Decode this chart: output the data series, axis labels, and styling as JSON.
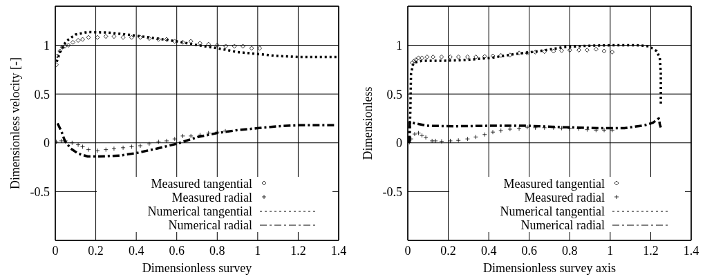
{
  "chart_data": [
    {
      "type": "line",
      "xlabel": "Dimensionless survey",
      "ylabel": "Dimensionless velocity [-]",
      "xlim": [
        0,
        1.4
      ],
      "ylim": [
        -1,
        1.4
      ],
      "xticks": [
        0,
        0.2,
        0.4,
        0.6,
        0.8,
        1,
        1.2,
        1.4
      ],
      "yticks": [
        -0.5,
        0,
        0.5,
        1
      ],
      "grid": true,
      "legend": "bottom",
      "series": [
        {
          "name": "Measured tangential",
          "type": "scatter",
          "marker": "diamond",
          "color": "#000000",
          "x": [
            0.005,
            0.01,
            0.023,
            0.035,
            0.047,
            0.065,
            0.087,
            0.113,
            0.135,
            0.164,
            0.208,
            0.25,
            0.29,
            0.335,
            0.377,
            0.42,
            0.464,
            0.51,
            0.55,
            0.59,
            0.63,
            0.67,
            0.715,
            0.757,
            0.8,
            0.842,
            0.885,
            0.927,
            0.97,
            1.01
          ],
          "values": [
            0.8,
            0.89,
            0.94,
            0.98,
            0.99,
            1.0,
            1.03,
            1.05,
            1.06,
            1.08,
            1.08,
            1.09,
            1.09,
            1.08,
            1.08,
            1.08,
            1.07,
            1.06,
            1.06,
            1.04,
            1.03,
            1.04,
            1.02,
            1.01,
            1.0,
            0.99,
            0.99,
            0.99,
            0.97,
            0.97
          ]
        },
        {
          "name": "Measured radial",
          "type": "scatter",
          "marker": "cross",
          "color": "#000000",
          "x": [
            0.005,
            0.03,
            0.05,
            0.083,
            0.113,
            0.135,
            0.164,
            0.208,
            0.25,
            0.29,
            0.335,
            0.377,
            0.42,
            0.464,
            0.51,
            0.55,
            0.59,
            0.63,
            0.67,
            0.715,
            0.757,
            0.8,
            0.84
          ],
          "values": [
            0.01,
            0.02,
            0.02,
            0.0,
            -0.02,
            -0.04,
            -0.07,
            -0.08,
            -0.07,
            -0.06,
            -0.05,
            -0.04,
            -0.03,
            -0.01,
            0.01,
            0.02,
            0.04,
            0.07,
            0.07,
            0.08,
            0.1,
            0.11,
            0.12
          ]
        },
        {
          "name": "Numerical tangential",
          "type": "line",
          "line_style": "dotted",
          "color": "#000000",
          "x": [
            0.007,
            0.023,
            0.053,
            0.1,
            0.16,
            0.26,
            0.355,
            0.464,
            0.6,
            0.705,
            0.8,
            0.9,
            1.0,
            1.1,
            1.2,
            1.39
          ],
          "values": [
            0.83,
            0.93,
            1.04,
            1.11,
            1.135,
            1.13,
            1.11,
            1.08,
            1.04,
            1.0,
            0.97,
            0.93,
            0.91,
            0.89,
            0.88,
            0.88
          ]
        },
        {
          "name": "Numerical radial",
          "type": "line",
          "line_style": "dashdot",
          "color": "#000000",
          "x": [
            0.011,
            0.03,
            0.047,
            0.077,
            0.113,
            0.16,
            0.22,
            0.32,
            0.4,
            0.5,
            0.6,
            0.705,
            0.8,
            0.9,
            1.0,
            1.1,
            1.2,
            1.39
          ],
          "values": [
            0.2,
            0.12,
            0.02,
            -0.06,
            -0.11,
            -0.14,
            -0.14,
            -0.13,
            -0.105,
            -0.06,
            -0.01,
            0.06,
            0.1,
            0.13,
            0.15,
            0.17,
            0.18,
            0.18
          ]
        }
      ]
    },
    {
      "type": "line",
      "xlabel": "Dimensionless survey axis",
      "ylabel": "Dimensionless",
      "xlim": [
        0,
        1.4
      ],
      "ylim": [
        -1,
        1.4
      ],
      "xticks": [
        0,
        0.2,
        0.4,
        0.6,
        0.8,
        1,
        1.2,
        1.4
      ],
      "yticks": [
        -0.5,
        0,
        0.5,
        1
      ],
      "grid": true,
      "legend": "bottom",
      "series": [
        {
          "name": "Measured tangential",
          "type": "scatter",
          "marker": "diamond",
          "color": "#000000",
          "x": [
            0.022,
            0.032,
            0.04,
            0.053,
            0.07,
            0.095,
            0.125,
            0.167,
            0.21,
            0.25,
            0.295,
            0.336,
            0.38,
            0.42,
            0.46,
            0.505,
            0.55,
            0.59,
            0.63,
            0.675,
            0.72,
            0.76,
            0.8,
            0.845,
            0.886,
            0.93,
            0.97,
            1.01
          ],
          "values": [
            0.82,
            0.84,
            0.85,
            0.87,
            0.87,
            0.88,
            0.88,
            0.88,
            0.88,
            0.88,
            0.88,
            0.88,
            0.885,
            0.89,
            0.895,
            0.9,
            0.92,
            0.92,
            0.93,
            0.935,
            0.94,
            0.945,
            0.95,
            0.95,
            0.95,
            0.96,
            0.94,
            0.93
          ]
        },
        {
          "name": "Measured radial",
          "type": "scatter",
          "marker": "cross",
          "color": "#000000",
          "x": [
            0.008,
            0.016,
            0.034,
            0.053,
            0.07,
            0.089,
            0.12,
            0.137,
            0.167,
            0.21,
            0.25,
            0.295,
            0.336,
            0.38,
            0.42,
            0.46,
            0.505,
            0.55,
            0.59,
            0.63,
            0.675,
            0.72,
            0.76,
            0.8,
            0.845,
            0.886,
            0.93,
            0.97,
            1.01
          ],
          "values": [
            0.005,
            0.04,
            0.09,
            0.1,
            0.075,
            0.055,
            0.02,
            0.02,
            0.015,
            0.02,
            0.025,
            0.04,
            0.06,
            0.085,
            0.11,
            0.125,
            0.14,
            0.145,
            0.16,
            0.155,
            0.155,
            0.155,
            0.15,
            0.145,
            0.145,
            0.135,
            0.13,
            0.13,
            0.13
          ]
        },
        {
          "name": "Numerical tangential",
          "type": "line",
          "line_style": "dotted",
          "color": "#000000",
          "x": [
            0.008,
            0.013,
            0.016,
            0.028,
            0.07,
            0.167,
            0.29,
            0.41,
            0.53,
            0.65,
            0.77,
            0.89,
            1.01,
            1.13,
            1.19,
            1.23,
            1.245,
            1.25,
            1.25
          ],
          "values": [
            0.0,
            0.36,
            0.71,
            0.82,
            0.84,
            0.84,
            0.85,
            0.87,
            0.91,
            0.94,
            0.98,
            0.995,
            1.0,
            1.0,
            0.99,
            0.94,
            0.87,
            0.71,
            0.39
          ]
        },
        {
          "name": "Numerical radial",
          "type": "line",
          "line_style": "dashdot",
          "color": "#000000",
          "x": [
            0.008,
            0.01,
            0.034,
            0.095,
            0.23,
            0.41,
            0.59,
            0.77,
            0.95,
            1.07,
            1.17,
            1.21,
            1.24,
            1.245,
            1.25
          ],
          "values": [
            0.0,
            0.215,
            0.2,
            0.175,
            0.17,
            0.175,
            0.175,
            0.16,
            0.15,
            0.15,
            0.18,
            0.205,
            0.25,
            0.19,
            0.157
          ]
        }
      ]
    }
  ]
}
